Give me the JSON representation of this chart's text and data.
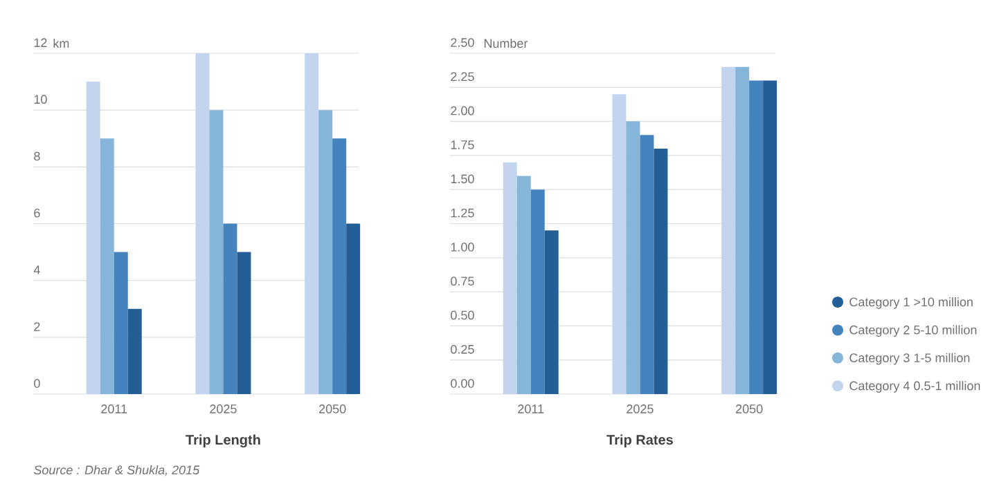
{
  "chart_data": [
    {
      "type": "bar",
      "xlabel": "Trip Length",
      "ylabel": "km",
      "categories": [
        "2011",
        "2025",
        "2050"
      ],
      "series": [
        {
          "color": "#c3d5ee",
          "values": [
            11,
            12,
            12
          ]
        },
        {
          "color": "#86b5da",
          "values": [
            9,
            10,
            10
          ]
        },
        {
          "color": "#4383be",
          "values": [
            5,
            6,
            9
          ]
        },
        {
          "color": "#245e96",
          "values": [
            3,
            5,
            6
          ]
        }
      ],
      "ylim": [
        0,
        12
      ],
      "yticks": [
        0,
        2,
        4,
        6,
        8,
        10,
        12
      ],
      "grid": "y",
      "annotations": [
        "Source : Dhar & Shukla, 2015"
      ]
    },
    {
      "type": "bar",
      "xlabel": "Trip Rates",
      "ylabel": "Number",
      "categories": [
        "2011",
        "2025",
        "2050"
      ],
      "series": [
        {
          "name": "Category 4 0.5-1 million",
          "color": "#c3d5ee",
          "values": [
            1.7,
            2.2,
            2.4
          ]
        },
        {
          "name": "Category 3 1-5 million",
          "color": "#86b5da",
          "values": [
            1.6,
            2.0,
            2.4
          ]
        },
        {
          "name": "Category 2 5-10 million",
          "color": "#4383be",
          "values": [
            1.5,
            1.9,
            2.3
          ]
        },
        {
          "name": "Category 1 >10 million",
          "color": "#245e96",
          "values": [
            1.2,
            1.8,
            2.3
          ]
        }
      ],
      "ylim": [
        0,
        2.5
      ],
      "yticks": [
        {
          "value": 0,
          "label": "0.00"
        },
        {
          "value": 0.25,
          "label": "0.25"
        },
        {
          "value": 0.5,
          "label": "0.50"
        },
        {
          "value": 0.75,
          "label": "0.75"
        },
        {
          "value": 1,
          "label": "1.00"
        },
        {
          "value": 1.25,
          "label": "1.25"
        },
        {
          "value": 1.5,
          "label": "1.50"
        },
        {
          "value": 1.75,
          "label": "1.75"
        },
        {
          "value": 2,
          "label": "2.00"
        },
        {
          "value": 2.25,
          "label": "2.25"
        },
        {
          "value": 2.5,
          "label": "2.50"
        }
      ],
      "grid": "y",
      "legend": "right"
    }
  ]
}
